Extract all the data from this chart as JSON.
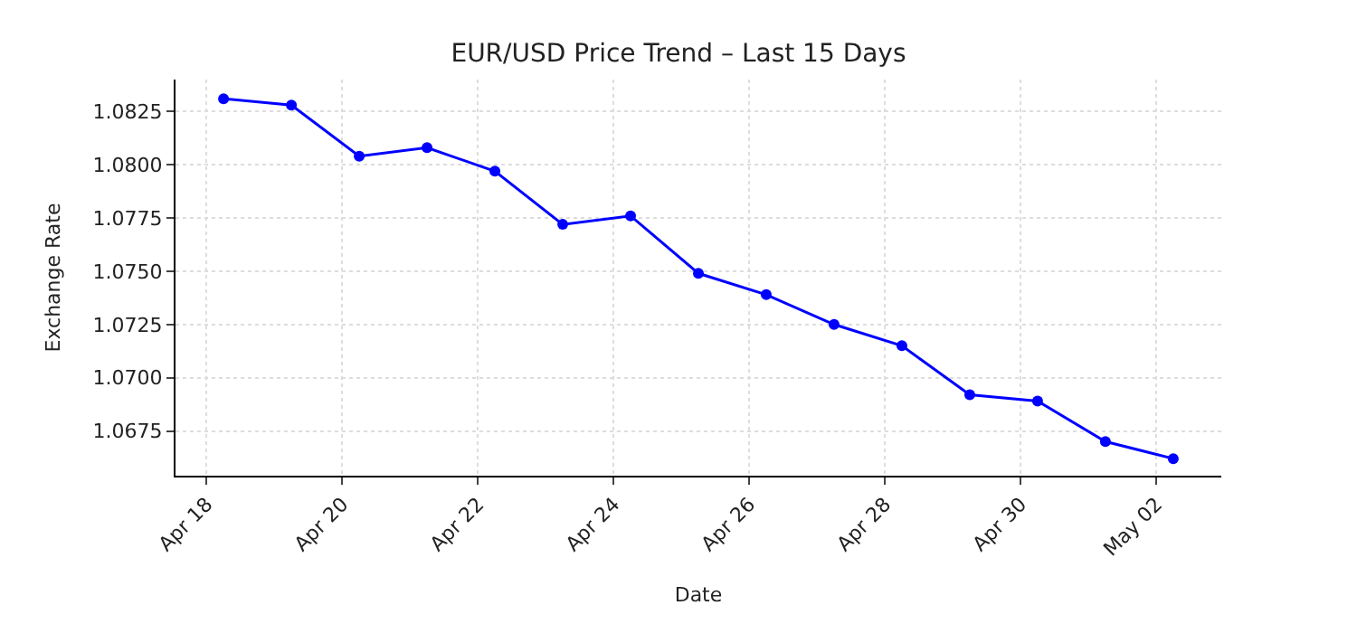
{
  "chart_data": {
    "type": "line",
    "title": "EUR/USD Price Trend – Last 15 Days",
    "xlabel": "Date",
    "ylabel": "Exchange Rate",
    "x": [
      "--04-18T06:00",
      "--04-19T06:00",
      "--04-20T06:00",
      "--04-21T06:00",
      "--04-22T06:00",
      "--04-23T06:00",
      "--04-24T06:00",
      "--04-25T06:00",
      "--04-26T06:00",
      "--04-27T06:00",
      "--04-28T06:00",
      "--04-29T06:00",
      "--04-30T06:00",
      "--05-01T06:00",
      "--05-02T06:00"
    ],
    "series": [
      {
        "color": "#0000ff",
        "values": [
          1.0831,
          1.0828,
          1.0804,
          1.0808,
          1.0797,
          1.0772,
          1.0776,
          1.0749,
          1.0739,
          1.0725,
          1.0715,
          1.0692,
          1.0689,
          1.067,
          1.0662
        ]
      }
    ],
    "xlim": [
      "--04-17T13:00",
      "--05-02T23:00"
    ],
    "xticks": [
      {
        "value": "--04-18",
        "label": "Apr 18"
      },
      {
        "value": "--04-20",
        "label": "Apr 20"
      },
      {
        "value": "--04-22",
        "label": "Apr 22"
      },
      {
        "value": "--04-24",
        "label": "Apr 24"
      },
      {
        "value": "--04-26",
        "label": "Apr 26"
      },
      {
        "value": "--04-28",
        "label": "Apr 28"
      },
      {
        "value": "--04-30",
        "label": "Apr 30"
      },
      {
        "value": "--05-02",
        "label": "May 02"
      }
    ],
    "ylim": [
      1.0654,
      1.084
    ],
    "yticks": [
      {
        "value": 1.0675,
        "label": "1.0675"
      },
      {
        "value": 1.07,
        "label": "1.0700"
      },
      {
        "value": 1.0725,
        "label": "1.0725"
      },
      {
        "value": 1.075,
        "label": "1.0750"
      },
      {
        "value": 1.0775,
        "label": "1.0775"
      },
      {
        "value": 1.08,
        "label": "1.0800"
      },
      {
        "value": 1.0825,
        "label": "1.0825"
      }
    ],
    "grid": true,
    "marker": "circle",
    "line_style": "solid",
    "legend": false
  }
}
